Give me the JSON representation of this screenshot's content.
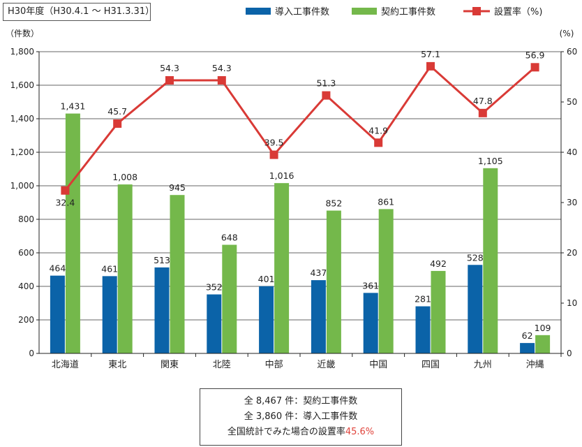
{
  "period_label": "H30年度（H30.4.1 ～ H31.3.31）",
  "colors": {
    "intro": "#0b63a8",
    "contract": "#74b84b",
    "rate": "#d93a36",
    "grid": "#333333"
  },
  "chart_data": {
    "type": "bar",
    "categories": [
      "北海道",
      "東北",
      "関東",
      "北陸",
      "中部",
      "近畿",
      "中国",
      "四国",
      "九州",
      "沖縄"
    ],
    "series": [
      {
        "name": "導入工事件数",
        "type": "bar",
        "axis": "left",
        "values": [
          464,
          461,
          513,
          352,
          401,
          437,
          361,
          281,
          528,
          62
        ],
        "labels": [
          "464",
          "461",
          "513",
          "352",
          "401",
          "437",
          "361",
          "281",
          "528",
          "62"
        ]
      },
      {
        "name": "契約工事件数",
        "type": "bar",
        "axis": "left",
        "values": [
          1431,
          1008,
          945,
          648,
          1016,
          852,
          861,
          492,
          1105,
          109
        ],
        "labels": [
          "1,431",
          "1,008",
          "945",
          "648",
          "1,016",
          "852",
          "861",
          "492",
          "1,105",
          "109"
        ]
      },
      {
        "name": "設置率（%)",
        "type": "line",
        "axis": "right",
        "values": [
          32.4,
          45.7,
          54.3,
          54.3,
          39.5,
          51.3,
          41.9,
          57.1,
          47.8,
          56.9
        ],
        "labels": [
          "32.4",
          "45.7",
          "54.3",
          "54.3",
          "39.5",
          "51.3",
          "41.9",
          "57.1",
          "47.8",
          "56.9"
        ]
      }
    ],
    "ylabel": "（件数）",
    "y2label": "(%)",
    "ylim": [
      0,
      1800
    ],
    "y2lim": [
      0,
      60
    ],
    "yticks": [
      0,
      200,
      400,
      600,
      800,
      1000,
      1200,
      1400,
      1600,
      1800
    ],
    "yticklabels": [
      "0",
      "200",
      "400",
      "600",
      "800",
      "1,000",
      "1,200",
      "1,400",
      "1,600",
      "1,800"
    ],
    "y2ticks": [
      0,
      10,
      20,
      30,
      40,
      50,
      60
    ],
    "y2ticklabels": [
      "0",
      "10",
      "20",
      "30",
      "40",
      "50",
      "60"
    ],
    "grid": true,
    "legend_position": "top-right"
  },
  "summary": {
    "line1": "全 8,467 件：契約工事件数",
    "line2": "全 3,860 件：導入工事件数",
    "line3_prefix": "全国統計でみた場合の設置率",
    "line3_value": "45.6%"
  }
}
